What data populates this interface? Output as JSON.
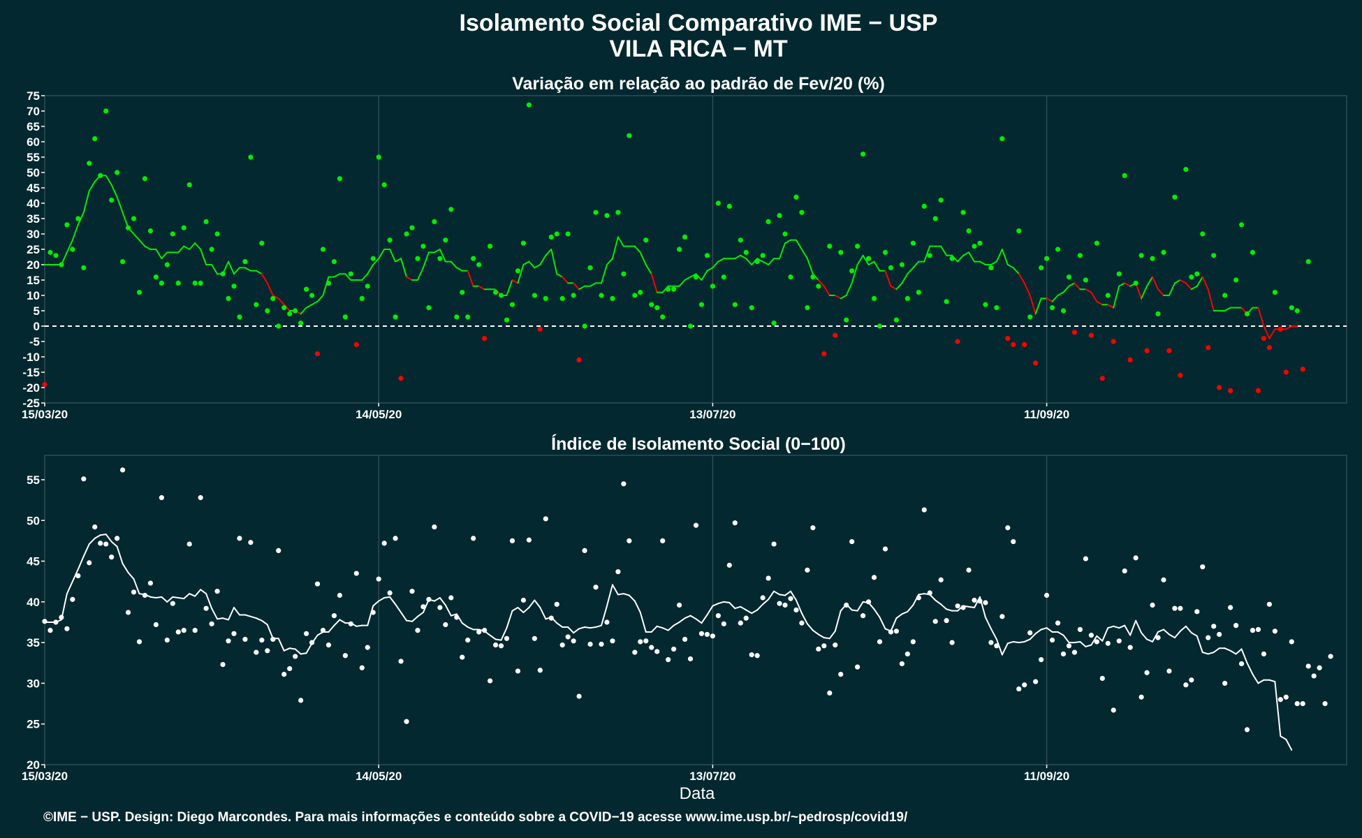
{
  "figure": {
    "title_line1": "Isolamento Social Comparativo IME − USP",
    "title_line2": "VILA RICA − MT",
    "xlabel": "Data",
    "caption": "©IME − USP. Design: Diego Marcondes. Para mais informações e conteúdo sobre a COVID−19 acesse www.ime.usp.br/~pedrosp/covid19/",
    "background_color": "#03282f",
    "grid_color": "#2f4d55"
  },
  "chart_data": [
    {
      "type": "scatter",
      "title": "Variação em relação ao padrão de Fev/20 (%)",
      "xlabel": "",
      "ylabel": "",
      "x_start": "15/03/20",
      "x_ticks": [
        "15/03/20",
        "14/05/20",
        "13/07/20",
        "11/09/20"
      ],
      "y_ticks": [
        -25,
        -20,
        -15,
        -10,
        -5,
        0,
        5,
        10,
        15,
        20,
        25,
        30,
        35,
        40,
        45,
        50,
        55,
        60,
        65,
        70,
        75
      ],
      "ylim": [
        -25,
        75
      ],
      "reference_line": 0,
      "colors": {
        "positive": "#00ee00",
        "negative": "#ff0000"
      },
      "series": [
        {
          "kind": "points",
          "values": [
            -19,
            24,
            23,
            20,
            33,
            25,
            35,
            19,
            53,
            61,
            49,
            70,
            41,
            50,
            21,
            32,
            35,
            11,
            48,
            31,
            16,
            14,
            20,
            30,
            14,
            32,
            46,
            14,
            14,
            34,
            25,
            30,
            17,
            9,
            13,
            3,
            21,
            55,
            7,
            27,
            5,
            9,
            0,
            6,
            4,
            5,
            1,
            12,
            10,
            -9,
            25,
            14,
            21,
            48,
            3,
            17,
            -6,
            9,
            13,
            22,
            55,
            46,
            28,
            3,
            -17,
            30,
            32,
            22,
            26,
            6,
            34,
            22,
            28,
            38,
            3,
            11,
            3,
            22,
            20,
            -4,
            26,
            11,
            10,
            2,
            7,
            18,
            27,
            72,
            10,
            -1,
            9,
            29,
            30,
            9,
            30,
            10,
            -11,
            0,
            19,
            37,
            10,
            36,
            9,
            37,
            17,
            62,
            10,
            11,
            28,
            7,
            6,
            3,
            12,
            12,
            25,
            29,
            0,
            16,
            7,
            23,
            13,
            40,
            16,
            39,
            7,
            28,
            24,
            6,
            21,
            23,
            34,
            1,
            36,
            30,
            16,
            42,
            37,
            6,
            16,
            13,
            -9,
            26,
            -3,
            24,
            2,
            18,
            26,
            56,
            22,
            9,
            0,
            24,
            19,
            2,
            20,
            9,
            27,
            11,
            39,
            23,
            35,
            41,
            8,
            22,
            -5,
            37,
            31,
            26,
            27,
            7,
            19,
            6,
            61,
            -4,
            -6,
            31,
            -6,
            3,
            -12,
            19,
            22,
            6,
            25,
            5,
            16,
            -2,
            23,
            15,
            -3,
            27,
            -17,
            10,
            -5,
            17,
            49,
            -11,
            14,
            23,
            -8,
            22,
            4,
            24,
            -8,
            42,
            -16,
            51,
            16,
            17,
            30,
            -7,
            23,
            -20,
            10,
            -21,
            15,
            33,
            4,
            24,
            -21,
            -4,
            -7,
            11,
            -1,
            -15,
            6,
            5,
            -14,
            21
          ]
        },
        {
          "kind": "moving_average",
          "values": [
            20,
            20,
            20,
            20,
            24,
            28,
            33,
            37,
            44,
            47,
            49,
            49,
            46,
            42,
            37,
            32,
            30,
            28,
            26,
            25,
            25,
            22,
            24,
            24,
            24,
            26,
            25,
            27,
            25,
            20,
            20,
            17,
            17,
            21,
            17,
            19,
            19,
            18,
            18,
            17,
            14,
            10,
            9,
            7,
            5,
            5,
            4,
            6,
            7,
            8,
            10,
            16,
            16,
            17,
            17,
            15,
            15,
            15,
            17,
            20,
            22,
            25,
            25,
            21,
            22,
            16,
            15,
            15,
            19,
            24,
            24,
            25,
            21,
            21,
            19,
            18,
            18,
            13,
            13,
            12,
            12,
            12,
            10,
            10,
            15,
            14,
            20,
            21,
            19,
            20,
            23,
            25,
            17,
            16,
            14,
            14,
            12,
            13,
            13,
            14,
            14,
            20,
            22,
            29,
            26,
            26,
            26,
            24,
            20,
            17,
            11,
            11,
            13,
            13,
            13,
            15,
            16,
            17,
            15,
            18,
            19,
            21,
            22,
            22,
            22,
            23,
            22,
            20,
            22,
            21,
            20,
            22,
            22,
            27,
            28,
            28,
            25,
            22,
            17,
            15,
            13,
            10,
            10,
            9,
            10,
            14,
            20,
            23,
            20,
            21,
            18,
            18,
            13,
            12,
            14,
            17,
            19,
            21,
            21,
            26,
            26,
            26,
            23,
            23,
            21,
            23,
            24,
            21,
            21,
            20,
            20,
            21,
            25,
            20,
            19,
            17,
            14,
            10,
            4,
            9,
            9,
            8,
            10,
            11,
            13,
            14,
            12,
            12,
            11,
            8,
            7,
            7,
            6,
            13,
            14,
            13,
            14,
            9,
            13,
            16,
            12,
            10,
            10,
            14,
            15,
            14,
            12,
            13,
            16,
            12,
            5,
            5,
            5,
            6,
            6,
            6,
            4,
            6,
            6,
            0,
            -4,
            -1,
            -1,
            -1,
            0,
            0
          ]
        }
      ]
    },
    {
      "type": "scatter",
      "title": "Índice de Isolamento Social (0−100)",
      "xlabel": "Data",
      "ylabel": "",
      "x_start": "15/03/20",
      "x_ticks": [
        "15/03/20",
        "14/05/20",
        "13/07/20",
        "11/09/20"
      ],
      "y_ticks": [
        20,
        25,
        30,
        35,
        40,
        45,
        50,
        55
      ],
      "ylim": [
        20,
        58
      ],
      "colors": {
        "points": "#ffffff",
        "line": "#ffffff"
      },
      "series": [
        {
          "kind": "points",
          "values": [
            37.6,
            36.5,
            37.5,
            38.1,
            36.7,
            40.3,
            43.2,
            55.1,
            44.8,
            49.2,
            47.2,
            47.1,
            45.5,
            47.8,
            56.2,
            38.7,
            41.2,
            35.1,
            40.8,
            42.3,
            37.2,
            52.8,
            35.3,
            39.8,
            36.3,
            36.5,
            47.1,
            36.5,
            52.8,
            39.2,
            37.3,
            41.3,
            32.3,
            35.2,
            36.1,
            47.8,
            35.4,
            47.3,
            33.8,
            35.3,
            34.0,
            35.4,
            46.3,
            31.1,
            31.8,
            33.3,
            27.9,
            36.1,
            35.0,
            42.2,
            36.5,
            34.7,
            38.3,
            40.8,
            33.4,
            37.3,
            43.5,
            31.9,
            34.4,
            38.7,
            42.8,
            47.2,
            41.1,
            47.8,
            32.7,
            25.3,
            41.3,
            36.5,
            39.4,
            40.3,
            49.2,
            39.3,
            37.2,
            40.5,
            38.1,
            33.2,
            35.3,
            47.8,
            36.3,
            36.5,
            30.3,
            34.7,
            34.6,
            35.5,
            47.5,
            31.5,
            40.2,
            47.6,
            35.5,
            31.6,
            50.2,
            38.0,
            39.7,
            34.7,
            35.7,
            35.2,
            28.4,
            46.3,
            34.8,
            41.8,
            34.8,
            37.5,
            35.2,
            43.7,
            54.5,
            47.5,
            33.8,
            35.1,
            35.2,
            34.4,
            33.9,
            47.5,
            32.9,
            34.2,
            39.6,
            35.4,
            33.0,
            49.4,
            36.1,
            36.0,
            35.8,
            38.3,
            37.3,
            44.5,
            49.7,
            37.4,
            38.0,
            33.5,
            33.4,
            40.5,
            42.9,
            47.1,
            39.8,
            39.6,
            40.4,
            39.0,
            37.4,
            43.9,
            49.1,
            34.2,
            34.6,
            28.8,
            34.7,
            31.1,
            39.6,
            47.4,
            32.0,
            38.3,
            40.0,
            43.0,
            35.1,
            46.5,
            36.3,
            36.4,
            32.4,
            33.6,
            35.1,
            40.5,
            51.3,
            41.1,
            37.6,
            42.7,
            37.7,
            35.0,
            39.5,
            39.3,
            43.9,
            40.2,
            40.1,
            39.9,
            35.0,
            34.6,
            38.2,
            49.1,
            47.4,
            29.3,
            29.8,
            36.2,
            30.2,
            32.9,
            40.8,
            35.3,
            37.4,
            33.6,
            34.6,
            33.8,
            36.6,
            45.3,
            35.9,
            35.1,
            30.6,
            34.9,
            26.7,
            35.2,
            43.8,
            34.4,
            45.4,
            28.3,
            31.3,
            39.6,
            35.6,
            42.7,
            31.5,
            39.2,
            39.2,
            29.8,
            30.4,
            38.8,
            44.3,
            35.6,
            37.0,
            36.0,
            30.0,
            39.3,
            37.1,
            32.4,
            24.3,
            36.5,
            36.6,
            33.6,
            39.7,
            36.4,
            28.0,
            28.3,
            35.1,
            27.5,
            27.5,
            32.1,
            30.9,
            31.9,
            27.5,
            33.3
          ]
        },
        {
          "kind": "moving_average",
          "values": [
            37.5,
            37.5,
            37.5,
            37.8,
            41.0,
            42.5,
            44.0,
            45.6,
            47.1,
            47.8,
            48.2,
            48.3,
            47.4,
            46.8,
            44.7,
            43.6,
            42.8,
            41.0,
            40.9,
            40.6,
            40.5,
            40.6,
            40.0,
            40.6,
            40.5,
            40.4,
            41.0,
            40.7,
            41.5,
            41.0,
            39.2,
            37.9,
            38.0,
            37.8,
            39.3,
            38.4,
            38.4,
            38.2,
            38.0,
            37.7,
            37.2,
            35.5,
            35.5,
            34.0,
            34.3,
            34.2,
            33.6,
            33.7,
            34.9,
            35.9,
            36.3,
            36.3,
            37.1,
            37.8,
            37.4,
            37.4,
            37.0,
            37.1,
            37.1,
            39.5,
            40.1,
            40.5,
            40.6,
            39.7,
            38.7,
            37.7,
            37.6,
            38.2,
            38.7,
            40.3,
            40.1,
            40.5,
            39.6,
            38.3,
            38.5,
            37.4,
            36.9,
            36.6,
            36.6,
            36.4,
            35.9,
            35.4,
            35.3,
            36.8,
            38.9,
            39.3,
            38.7,
            39.3,
            40.2,
            39.3,
            37.9,
            38.1,
            37.4,
            36.9,
            36.9,
            36.2,
            36.7,
            36.9,
            36.8,
            36.9,
            37.1,
            39.5,
            42.1,
            40.9,
            41.0,
            40.8,
            40.1,
            38.7,
            36.3,
            36.3,
            37.0,
            36.8,
            36.5,
            37.1,
            37.5,
            38.0,
            38.3,
            37.9,
            37.4,
            38.4,
            39.5,
            39.8,
            40.0,
            39.9,
            39.2,
            39.4,
            39.0,
            38.6,
            39.0,
            39.7,
            40.3,
            41.3,
            40.9,
            40.8,
            41.3,
            40.2,
            38.6,
            37.3,
            36.5,
            36.0,
            35.6,
            35.5,
            36.4,
            38.9,
            39.7,
            39.0,
            38.9,
            40.0,
            39.9,
            39.1,
            38.1,
            36.7,
            36.4,
            38.0,
            38.5,
            38.8,
            39.6,
            40.9,
            41.0,
            40.9,
            40.2,
            39.7,
            39.1,
            38.9,
            38.9,
            39.5,
            39.4,
            39.3,
            40.6,
            38.1,
            36.7,
            35.4,
            33.5,
            34.9,
            35.1,
            35.0,
            35.1,
            35.4,
            36.1,
            36.6,
            36.8,
            36.3,
            36.3,
            35.9,
            35.0,
            35.0,
            35.1,
            34.5,
            34.7,
            35.8,
            35.2,
            36.8,
            37.0,
            36.8,
            37.1,
            35.9,
            37.7,
            36.2,
            35.4,
            35.1,
            36.3,
            36.6,
            36.0,
            35.6,
            36.4,
            37.0,
            36.2,
            35.8,
            33.8,
            33.6,
            33.8,
            34.3,
            34.3,
            34.0,
            33.6,
            34.2,
            32.5,
            31.1,
            30.0,
            30.4,
            30.4,
            30.2,
            23.5,
            23.1,
            21.8
          ]
        }
      ]
    }
  ]
}
